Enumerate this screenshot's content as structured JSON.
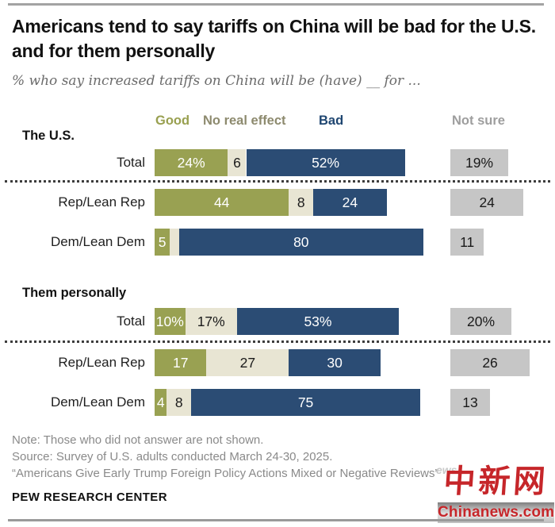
{
  "header": {
    "title": "Americans tend to say tariffs on China will be bad for the U.S. and for them personally",
    "subtitle": "% who say increased tariffs on China will be (have) __ for ..."
  },
  "chart_data": {
    "type": "bar",
    "stacked": true,
    "orientation": "horizontal",
    "unit": "%",
    "axis_max": 100,
    "grid": false,
    "legend_position": "top",
    "legend": [
      {
        "key": "good",
        "label": "Good",
        "color": "#99a152",
        "label_text_color": "#ffffff",
        "legend_text_color": "#99a050"
      },
      {
        "key": "no_effect",
        "label": "No real effect",
        "color": "#e8e5d3",
        "label_text_color": "#1a1a1a",
        "legend_text_color": "#8d8a6e"
      },
      {
        "key": "bad",
        "label": "Bad",
        "color": "#2b4c74",
        "label_text_color": "#ffffff",
        "legend_text_color": "#1f4671"
      },
      {
        "key": "not_sure",
        "label": "Not sure",
        "color": "#c6c6c6",
        "label_text_color": "#1a1a1a",
        "legend_text_color": "#9e9e9e"
      }
    ],
    "sections": [
      {
        "heading": "The U.S.",
        "rows": [
          {
            "label": "Total",
            "values": {
              "good": 24,
              "no_effect": 6,
              "bad": 52,
              "not_sure": 19
            },
            "display": {
              "good": "24%",
              "no_effect": "6",
              "bad": "52%",
              "not_sure": "19%"
            },
            "divider_after": true
          },
          {
            "label": "Rep/Lean Rep",
            "values": {
              "good": 44,
              "no_effect": 8,
              "bad": 24,
              "not_sure": 24
            },
            "display": {
              "good": "44",
              "no_effect": "8",
              "bad": "24",
              "not_sure": "24"
            },
            "divider_after": false
          },
          {
            "label": "Dem/Lean Dem",
            "values": {
              "good": 5,
              "no_effect": 3,
              "bad": 80,
              "not_sure": 11
            },
            "display": {
              "good": "5",
              "no_effect": "",
              "bad": "80",
              "not_sure": "11"
            },
            "divider_after": false
          }
        ]
      },
      {
        "heading": "Them personally",
        "rows": [
          {
            "label": "Total",
            "values": {
              "good": 10,
              "no_effect": 17,
              "bad": 53,
              "not_sure": 20
            },
            "display": {
              "good": "10%",
              "no_effect": "17%",
              "bad": "53%",
              "not_sure": "20%"
            },
            "divider_after": true
          },
          {
            "label": "Rep/Lean Rep",
            "values": {
              "good": 17,
              "no_effect": 27,
              "bad": 30,
              "not_sure": 26
            },
            "display": {
              "good": "17",
              "no_effect": "27",
              "bad": "30",
              "not_sure": "26"
            },
            "divider_after": false
          },
          {
            "label": "Dem/Lean Dem",
            "values": {
              "good": 4,
              "no_effect": 8,
              "bad": 75,
              "not_sure": 13
            },
            "display": {
              "good": "4",
              "no_effect": "8",
              "bad": "75",
              "not_sure": "13"
            },
            "divider_after": false
          }
        ]
      }
    ]
  },
  "notes": {
    "line1": "Note: Those who did not answer are not shown.",
    "line2": "Source: Survey of U.S. adults conducted March 24-30, 2025.",
    "line3": "“Americans Give Early Trump Foreign Policy Actions Mixed or Negative Reviews”"
  },
  "footer": {
    "brand": "PEW RESEARCH CENTER"
  },
  "watermark": {
    "faded_text": "ews",
    "cjk": "中新网",
    "domain": "Chinanews.com",
    "red": "#c6262a"
  }
}
